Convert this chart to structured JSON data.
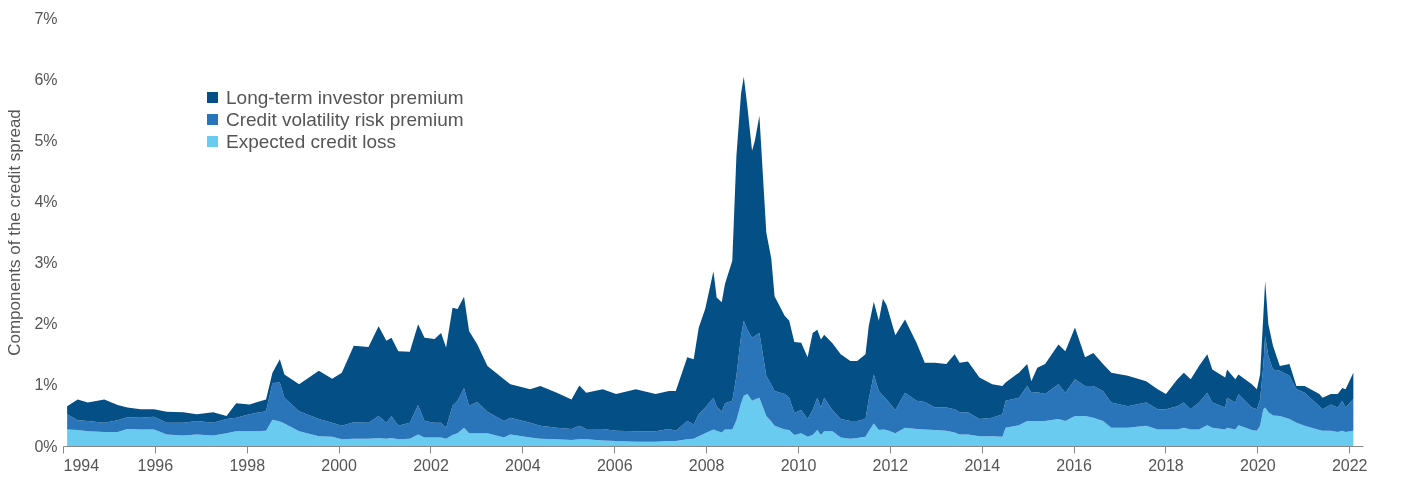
{
  "chart_data": {
    "type": "area",
    "ylabel": "Components of the credit spread",
    "stacked": true,
    "legend": "top left",
    "grid": false,
    "xlim": [
      1994,
      2022.3
    ],
    "xticks": [
      1994,
      1996,
      1998,
      2000,
      2002,
      2004,
      2006,
      2008,
      2010,
      2012,
      2014,
      2016,
      2018,
      2020,
      2022
    ],
    "ylim": [
      0,
      7
    ],
    "yticks": [
      {
        "value": 0,
        "label": "0%"
      },
      {
        "value": 1,
        "label": "1%"
      },
      {
        "value": 2,
        "label": "2%"
      },
      {
        "value": 3,
        "label": "3%"
      },
      {
        "value": 4,
        "label": "4%"
      },
      {
        "value": 5,
        "label": "5%"
      },
      {
        "value": 6,
        "label": "6%"
      },
      {
        "value": 7,
        "label": "7%"
      }
    ],
    "x": [
      1994.09,
      1994.32,
      1994.54,
      1994.9,
      1995.19,
      1995.4,
      1995.69,
      1995.98,
      1996.26,
      1996.62,
      1996.91,
      1997.27,
      1997.56,
      1997.77,
      1998.06,
      1998.42,
      1998.56,
      1998.72,
      1998.82,
      1999.14,
      1999.57,
      1999.86,
      2000.07,
      2000.33,
      2000.65,
      2000.87,
      2001.04,
      2001.15,
      2001.3,
      2001.55,
      2001.73,
      2001.87,
      2002.09,
      2002.23,
      2002.34,
      2002.48,
      2002.59,
      2002.73,
      2002.84,
      2003.02,
      2003.24,
      2003.6,
      2003.74,
      2004.17,
      2004.39,
      2004.75,
      2005.07,
      2005.24,
      2005.39,
      2005.75,
      2006.04,
      2006.47,
      2006.9,
      2007.19,
      2007.34,
      2007.59,
      2007.73,
      2007.84,
      2007.98,
      2008.16,
      2008.23,
      2008.34,
      2008.41,
      2008.57,
      2008.66,
      2008.76,
      2008.82,
      2008.9,
      2009.0,
      2009.06,
      2009.16,
      2009.31,
      2009.42,
      2009.49,
      2009.71,
      2009.81,
      2009.92,
      2010.07,
      2010.21,
      2010.32,
      2010.42,
      2010.5,
      2010.57,
      2010.75,
      2010.93,
      2011.14,
      2011.29,
      2011.47,
      2011.54,
      2011.65,
      2011.76,
      2011.85,
      2011.93,
      2012.12,
      2012.33,
      2012.58,
      2012.76,
      2012.98,
      2013.23,
      2013.41,
      2013.52,
      2013.7,
      2013.95,
      2014.23,
      2014.45,
      2014.52,
      2014.81,
      2014.99,
      2015.08,
      2015.21,
      2015.38,
      2015.67,
      2015.82,
      2016.03,
      2016.25,
      2016.43,
      2016.64,
      2016.82,
      2017.18,
      2017.58,
      2017.83,
      2018.01,
      2018.26,
      2018.4,
      2018.55,
      2018.73,
      2018.91,
      2019.02,
      2019.3,
      2019.34,
      2019.52,
      2019.59,
      2019.88,
      2019.99,
      2020.06,
      2020.13,
      2020.17,
      2020.24,
      2020.34,
      2020.49,
      2020.7,
      2020.85,
      2021.03,
      2021.35,
      2021.42,
      2021.6,
      2021.75,
      2021.85,
      2021.92,
      2022.09
    ],
    "series": [
      {
        "name": "Expected credit loss",
        "color": "#6acbf0",
        "values": [
          0.27,
          0.26,
          0.24,
          0.23,
          0.23,
          0.28,
          0.27,
          0.27,
          0.19,
          0.17,
          0.19,
          0.17,
          0.21,
          0.24,
          0.24,
          0.25,
          0.43,
          0.4,
          0.37,
          0.24,
          0.16,
          0.15,
          0.11,
          0.12,
          0.12,
          0.13,
          0.12,
          0.13,
          0.11,
          0.12,
          0.19,
          0.14,
          0.14,
          0.14,
          0.12,
          0.18,
          0.21,
          0.3,
          0.21,
          0.21,
          0.21,
          0.14,
          0.19,
          0.14,
          0.12,
          0.11,
          0.1,
          0.11,
          0.11,
          0.09,
          0.08,
          0.07,
          0.07,
          0.08,
          0.08,
          0.11,
          0.12,
          0.16,
          0.21,
          0.27,
          0.25,
          0.22,
          0.27,
          0.27,
          0.42,
          0.7,
          0.82,
          0.85,
          0.74,
          0.76,
          0.79,
          0.49,
          0.4,
          0.33,
          0.27,
          0.26,
          0.18,
          0.21,
          0.15,
          0.18,
          0.26,
          0.18,
          0.24,
          0.24,
          0.14,
          0.12,
          0.13,
          0.15,
          0.24,
          0.37,
          0.26,
          0.27,
          0.26,
          0.21,
          0.3,
          0.28,
          0.27,
          0.26,
          0.25,
          0.22,
          0.19,
          0.19,
          0.16,
          0.16,
          0.15,
          0.3,
          0.34,
          0.41,
          0.41,
          0.41,
          0.41,
          0.44,
          0.41,
          0.49,
          0.49,
          0.46,
          0.41,
          0.3,
          0.3,
          0.33,
          0.27,
          0.27,
          0.27,
          0.3,
          0.27,
          0.27,
          0.34,
          0.3,
          0.27,
          0.3,
          0.27,
          0.34,
          0.26,
          0.25,
          0.33,
          0.6,
          0.63,
          0.55,
          0.5,
          0.49,
          0.44,
          0.38,
          0.33,
          0.26,
          0.25,
          0.25,
          0.23,
          0.25,
          0.23,
          0.25
        ]
      },
      {
        "name": "Credit volatility risk premium",
        "color": "#2a74ba",
        "values": [
          0.25,
          0.16,
          0.17,
          0.15,
          0.19,
          0.19,
          0.19,
          0.21,
          0.19,
          0.21,
          0.22,
          0.21,
          0.23,
          0.22,
          0.28,
          0.32,
          0.6,
          0.64,
          0.42,
          0.33,
          0.28,
          0.23,
          0.22,
          0.27,
          0.26,
          0.36,
          0.26,
          0.36,
          0.22,
          0.26,
          0.48,
          0.27,
          0.24,
          0.24,
          0.18,
          0.48,
          0.53,
          0.65,
          0.45,
          0.51,
          0.35,
          0.27,
          0.27,
          0.24,
          0.21,
          0.19,
          0.18,
          0.22,
          0.17,
          0.19,
          0.17,
          0.17,
          0.17,
          0.2,
          0.17,
          0.3,
          0.23,
          0.36,
          0.42,
          0.52,
          0.4,
          0.34,
          0.43,
          0.47,
          0.73,
          1.1,
          1.23,
          1.05,
          1.03,
          1.04,
          1.06,
          0.66,
          0.6,
          0.57,
          0.58,
          0.53,
          0.36,
          0.38,
          0.29,
          0.41,
          0.53,
          0.45,
          0.55,
          0.35,
          0.3,
          0.29,
          0.28,
          0.29,
          0.52,
          0.8,
          0.64,
          0.55,
          0.5,
          0.38,
          0.57,
          0.46,
          0.45,
          0.37,
          0.38,
          0.38,
          0.36,
          0.36,
          0.28,
          0.3,
          0.37,
          0.44,
          0.45,
          0.57,
          0.46,
          0.47,
          0.44,
          0.57,
          0.46,
          0.6,
          0.49,
          0.52,
          0.49,
          0.41,
          0.35,
          0.38,
          0.33,
          0.33,
          0.38,
          0.41,
          0.33,
          0.44,
          0.53,
          0.41,
          0.36,
          0.49,
          0.44,
          0.51,
          0.37,
          0.35,
          0.43,
          0.71,
          1.17,
          0.92,
          0.75,
          0.74,
          0.71,
          0.55,
          0.54,
          0.39,
          0.35,
          0.43,
          0.4,
          0.49,
          0.4,
          0.52
        ]
      },
      {
        "name": "Long-term investor premium",
        "color": "#044f86",
        "values": [
          0.13,
          0.34,
          0.3,
          0.38,
          0.25,
          0.16,
          0.14,
          0.12,
          0.18,
          0.17,
          0.11,
          0.17,
          0.05,
          0.24,
          0.16,
          0.19,
          0.17,
          0.38,
          0.38,
          0.44,
          0.79,
          0.72,
          0.87,
          1.25,
          1.24,
          1.47,
          1.34,
          1.28,
          1.22,
          1.16,
          1.32,
          1.36,
          1.37,
          1.47,
          1.31,
          1.6,
          1.5,
          1.49,
          1.22,
          0.94,
          0.75,
          0.68,
          0.55,
          0.55,
          0.65,
          0.57,
          0.48,
          0.66,
          0.59,
          0.65,
          0.6,
          0.69,
          0.61,
          0.62,
          0.65,
          1.04,
          1.07,
          1.42,
          1.61,
          2.07,
          1.78,
          1.79,
          1.95,
          2.29,
          3.6,
          3.96,
          3.99,
          3.64,
          3.06,
          3.19,
          3.55,
          2.34,
          2.06,
          1.55,
          1.28,
          1.26,
          1.16,
          1.1,
          1.01,
          1.26,
          1.11,
          1.11,
          1.03,
          1.09,
          1.06,
          0.98,
          0.98,
          1.06,
          1.2,
          1.19,
          1.15,
          1.59,
          1.54,
          1.22,
          1.2,
          0.95,
          0.64,
          0.73,
          0.71,
          0.9,
          0.81,
          0.83,
          0.68,
          0.55,
          0.46,
          0.3,
          0.41,
          0.36,
          0.19,
          0.4,
          0.49,
          0.65,
          0.68,
          0.85,
          0.47,
          0.54,
          0.44,
          0.49,
          0.5,
          0.35,
          0.33,
          0.25,
          0.44,
          0.49,
          0.49,
          0.6,
          0.63,
          0.54,
          0.49,
          0.46,
          0.38,
          0.32,
          0.38,
          0.33,
          0.41,
          0.82,
          0.9,
          0.52,
          0.39,
          0.08,
          0.19,
          0.05,
          0.11,
          0.2,
          0.19,
          0.17,
          0.22,
          0.21,
          0.3,
          0.43
        ]
      }
    ]
  }
}
